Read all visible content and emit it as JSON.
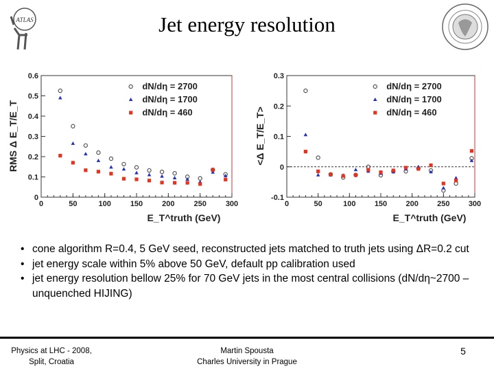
{
  "slide": {
    "title": "Jet energy resolution",
    "logo_left_text": "ATLAS",
    "bullets": [
      "cone algorithm R=0.4, 5 GeV seed, reconstructed jets matched to truth jets using ΔR=0.2 cut",
      "jet energy scale within 5% above 50 GeV, default pp calibration used",
      "jet energy resolution bellow 25% for 70 GeV jets in the most central collisions (dN/dη~2700 – unquenched HIJING)"
    ],
    "footer": {
      "left_line1": "Physics at LHC - 2008,",
      "left_line2": "Split, Croatia",
      "center_line1": "Martin Spousta",
      "center_line2": "Charles University in Prague",
      "page_number": "5"
    }
  },
  "chart_data": [
    {
      "type": "scatter",
      "ylabel": "RMS Δ E_T/E_T",
      "xlabel": "E_T^truth (GeV)",
      "xlim": [
        0,
        300
      ],
      "ylim": [
        0,
        0.6
      ],
      "xticks": [
        0,
        50,
        100,
        150,
        200,
        250,
        300
      ],
      "yticks": [
        0,
        0.1,
        0.2,
        0.3,
        0.4,
        0.5,
        0.6
      ],
      "legend_position": "top-right",
      "x": [
        30,
        50,
        70,
        90,
        110,
        130,
        150,
        170,
        190,
        210,
        230,
        250,
        270,
        290
      ],
      "series": [
        {
          "name": "dN/dη = 2700",
          "marker": "open-circle",
          "color": "#555555",
          "values": [
            0.525,
            0.35,
            0.255,
            0.22,
            0.19,
            0.163,
            0.147,
            0.132,
            0.125,
            0.118,
            0.101,
            0.093,
            0.135,
            0.113
          ]
        },
        {
          "name": "dN/dη = 1700",
          "marker": "triangle",
          "color": "#2233bb",
          "values": [
            0.49,
            0.265,
            0.213,
            0.18,
            0.148,
            0.138,
            0.12,
            0.11,
            0.103,
            0.095,
            0.088,
            0.075,
            0.123,
            0.105
          ]
        },
        {
          "name": "dN/dη = 460",
          "marker": "square",
          "color": "#e8321e",
          "values": [
            0.205,
            0.17,
            0.133,
            0.126,
            0.116,
            0.091,
            0.088,
            0.082,
            0.072,
            0.071,
            0.071,
            0.065,
            0.135,
            0.087
          ]
        }
      ]
    },
    {
      "type": "scatter",
      "ylabel": "<Δ E_T/E_T>",
      "xlabel": "E_T^truth (GeV)",
      "xlim": [
        0,
        300
      ],
      "ylim": [
        -0.1,
        0.3
      ],
      "xticks": [
        0,
        50,
        100,
        150,
        200,
        250,
        300
      ],
      "yticks": [
        -0.1,
        0,
        0.1,
        0.2,
        0.3
      ],
      "reference_line": 0,
      "legend_position": "top-right",
      "x": [
        30,
        50,
        70,
        90,
        110,
        130,
        150,
        170,
        190,
        210,
        230,
        250,
        270,
        295
      ],
      "series": [
        {
          "name": "dN/dη = 2700",
          "marker": "open-circle",
          "color": "#555555",
          "values": [
            0.25,
            0.03,
            -0.025,
            -0.035,
            -0.027,
            0.0,
            -0.028,
            -0.015,
            -0.015,
            -0.005,
            -0.012,
            -0.078,
            -0.055,
            0.028
          ]
        },
        {
          "name": "dN/dη = 1700",
          "marker": "triangle",
          "color": "#2233bb",
          "values": [
            0.105,
            -0.027,
            -0.027,
            -0.028,
            -0.01,
            -0.015,
            -0.022,
            -0.017,
            -0.008,
            0.0,
            -0.017,
            -0.07,
            -0.037,
            0.02
          ]
        },
        {
          "name": "dN/dη = 460",
          "marker": "square",
          "color": "#e8321e",
          "values": [
            0.05,
            -0.015,
            -0.025,
            -0.03,
            -0.027,
            -0.01,
            -0.018,
            -0.012,
            -0.003,
            -0.007,
            0.005,
            -0.055,
            -0.045,
            0.052
          ]
        }
      ]
    }
  ]
}
